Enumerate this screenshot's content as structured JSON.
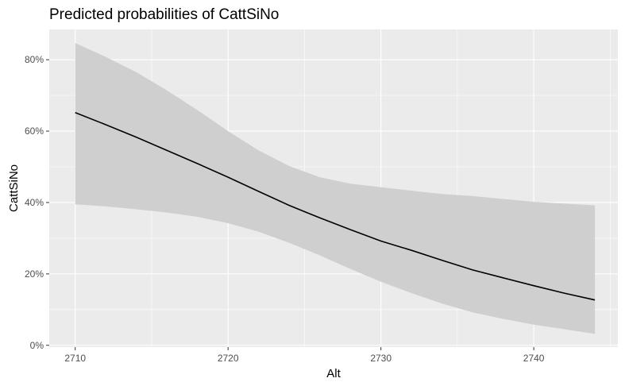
{
  "chart_data": {
    "type": "line",
    "title": "Predicted probabilities of CattSiNo",
    "xlabel": "Alt",
    "ylabel": "CattSiNo",
    "xlim": [
      2708.3,
      2745.5
    ],
    "ylim": [
      -0.005,
      0.885
    ],
    "xticks": [
      2710,
      2720,
      2730,
      2740
    ],
    "xtick_labels": [
      "2710",
      "2720",
      "2730",
      "2740"
    ],
    "xminor": [
      2715,
      2725,
      2735,
      2745
    ],
    "yticks": [
      0,
      0.2,
      0.4,
      0.6,
      0.8
    ],
    "ytick_labels": [
      "0%",
      "20%",
      "40%",
      "60%",
      "80%"
    ],
    "yminor": [
      0.1,
      0.3,
      0.5,
      0.7
    ],
    "grid": true,
    "legend": "none",
    "series": [
      {
        "x": [
          2710,
          2712,
          2714,
          2716,
          2718,
          2720,
          2722,
          2724,
          2726,
          2728,
          2730,
          2732,
          2734,
          2736,
          2738,
          2740,
          2742,
          2744
        ],
        "values": [
          0.652,
          0.618,
          0.583,
          0.546,
          0.509,
          0.471,
          0.431,
          0.392,
          0.357,
          0.324,
          0.292,
          0.266,
          0.238,
          0.211,
          0.189,
          0.167,
          0.146,
          0.127
        ],
        "ci_lower": [
          0.395,
          0.389,
          0.381,
          0.372,
          0.36,
          0.342,
          0.318,
          0.287,
          0.252,
          0.214,
          0.178,
          0.146,
          0.117,
          0.092,
          0.074,
          0.058,
          0.045,
          0.032
        ],
        "ci_upper": [
          0.847,
          0.808,
          0.765,
          0.714,
          0.659,
          0.6,
          0.546,
          0.502,
          0.471,
          0.453,
          0.443,
          0.433,
          0.424,
          0.418,
          0.41,
          0.402,
          0.397,
          0.392
        ]
      }
    ],
    "colors": {
      "panel": "#ebebeb",
      "grid_major": "#ffffff",
      "ribbon": "#cfcfcf",
      "line": "#000000",
      "axis_text": "#4d4d4d"
    }
  }
}
